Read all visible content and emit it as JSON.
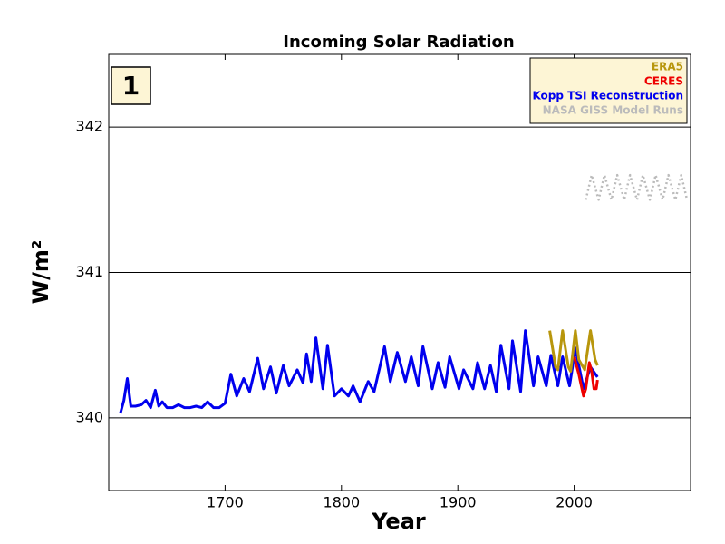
{
  "chart_data": {
    "type": "line",
    "title": "Incoming Solar Radiation",
    "xlabel": "Year",
    "ylabel": "W/m²",
    "annotation": "1",
    "xlim": [
      1600,
      2100
    ],
    "ylim": [
      339.5,
      342.5
    ],
    "xticks": [
      1700,
      1800,
      1900,
      2000
    ],
    "yticks": [
      340,
      341,
      342
    ],
    "grid": true,
    "legend": "upper right",
    "series": [
      {
        "name": "ERA5",
        "color": "#b8960c",
        "linestyle": "solid",
        "x": [
          1979,
          1984,
          1986,
          1990,
          1995,
          1997,
          2001,
          2004,
          2009,
          2014,
          2018,
          2020
        ],
        "values": [
          340.6,
          340.35,
          340.33,
          340.6,
          340.35,
          340.32,
          340.6,
          340.4,
          340.33,
          340.6,
          340.4,
          340.36
        ]
      },
      {
        "name": "CERES",
        "color": "#ee0000",
        "linestyle": "solid",
        "x": [
          2000,
          2004,
          2008,
          2010,
          2013,
          2015,
          2017,
          2019,
          2020
        ],
        "values": [
          340.42,
          340.3,
          340.15,
          340.2,
          340.38,
          340.32,
          340.2,
          340.2,
          340.26
        ]
      },
      {
        "name": "Kopp TSI Reconstruction",
        "color": "#0000ee",
        "linestyle": "solid",
        "x": [
          1610,
          1613,
          1616,
          1619,
          1623,
          1628,
          1632,
          1636,
          1640,
          1643,
          1646,
          1650,
          1655,
          1660,
          1665,
          1670,
          1675,
          1680,
          1685,
          1690,
          1695,
          1700,
          1705,
          1710,
          1716,
          1721,
          1728,
          1733,
          1739,
          1744,
          1750,
          1755,
          1762,
          1767,
          1770,
          1774,
          1778,
          1784,
          1788,
          1794,
          1800,
          1806,
          1810,
          1816,
          1823,
          1828,
          1837,
          1842,
          1848,
          1855,
          1860,
          1866,
          1870,
          1878,
          1883,
          1889,
          1893,
          1901,
          1905,
          1913,
          1917,
          1923,
          1928,
          1933,
          1937,
          1944,
          1947,
          1954,
          1958,
          1965,
          1969,
          1976,
          1980,
          1986,
          1990,
          1996,
          2001,
          2008,
          2014,
          2020
        ],
        "values": [
          340.03,
          340.12,
          340.27,
          340.08,
          340.08,
          340.09,
          340.12,
          340.07,
          340.19,
          340.08,
          340.11,
          340.07,
          340.07,
          340.09,
          340.07,
          340.07,
          340.08,
          340.07,
          340.11,
          340.07,
          340.07,
          340.1,
          340.3,
          340.15,
          340.27,
          340.18,
          340.41,
          340.2,
          340.35,
          340.17,
          340.36,
          340.22,
          340.33,
          340.24,
          340.44,
          340.25,
          340.55,
          340.2,
          340.5,
          340.15,
          340.2,
          340.15,
          340.22,
          340.11,
          340.25,
          340.18,
          340.49,
          340.25,
          340.45,
          340.25,
          340.42,
          340.22,
          340.49,
          340.2,
          340.38,
          340.21,
          340.42,
          340.2,
          340.33,
          340.2,
          340.38,
          340.2,
          340.36,
          340.18,
          340.5,
          340.2,
          340.53,
          340.18,
          340.6,
          340.22,
          340.42,
          340.22,
          340.43,
          340.22,
          340.42,
          340.22,
          340.48,
          340.2,
          340.35,
          340.28
        ]
      },
      {
        "name": "NASA GISS Model Runs",
        "color": "#bbbbbb",
        "linestyle": "dotted",
        "x": [
          2010,
          2015,
          2021,
          2026,
          2032,
          2037,
          2043,
          2048,
          2054,
          2059,
          2065,
          2070,
          2076,
          2081,
          2087,
          2092,
          2097
        ],
        "values": [
          341.5,
          341.67,
          341.5,
          341.67,
          341.5,
          341.67,
          341.5,
          341.67,
          341.5,
          341.67,
          341.5,
          341.67,
          341.5,
          341.67,
          341.5,
          341.67,
          341.5
        ]
      }
    ]
  }
}
